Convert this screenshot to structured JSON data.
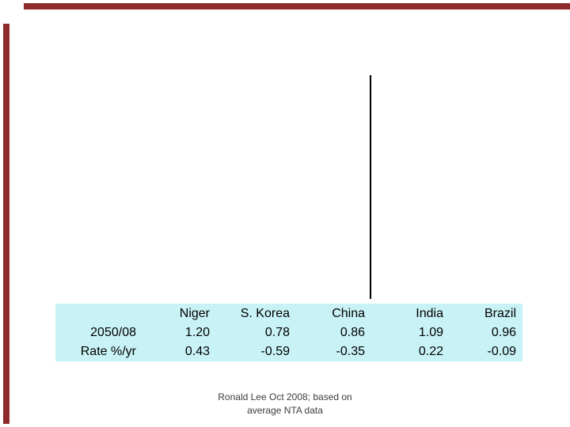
{
  "slide": {
    "accent_color": "#8f2a2b",
    "table_bg_color": "#c9f2f6",
    "text_color": "#000000",
    "caption_color": "#3c3c3c"
  },
  "table": {
    "header": [
      "",
      "Niger",
      "S. Korea",
      "China",
      "India",
      "Brazil"
    ],
    "rows": [
      {
        "label": "2050/08",
        "values": [
          "1.20",
          "0.78",
          "0.86",
          "1.09",
          "0.96"
        ]
      },
      {
        "label": "Rate %/yr",
        "values": [
          "0.43",
          "-0.59",
          "-0.35",
          "0.22",
          "-0.09"
        ]
      }
    ]
  },
  "caption": {
    "line1": "Ronald Lee Oct 2008; based on",
    "line2": "average NTA data"
  },
  "chart_data": {
    "type": "table",
    "columns": [
      "Niger",
      "S. Korea",
      "China",
      "India",
      "Brazil"
    ],
    "rows": [
      {
        "label": "2050/08",
        "values": [
          1.2,
          0.78,
          0.86,
          1.09,
          0.96
        ]
      },
      {
        "label": "Rate %/yr",
        "values": [
          0.43,
          -0.59,
          -0.35,
          0.22,
          -0.09
        ]
      }
    ],
    "note": "Ronald Lee Oct 2008; based on average NTA data"
  }
}
